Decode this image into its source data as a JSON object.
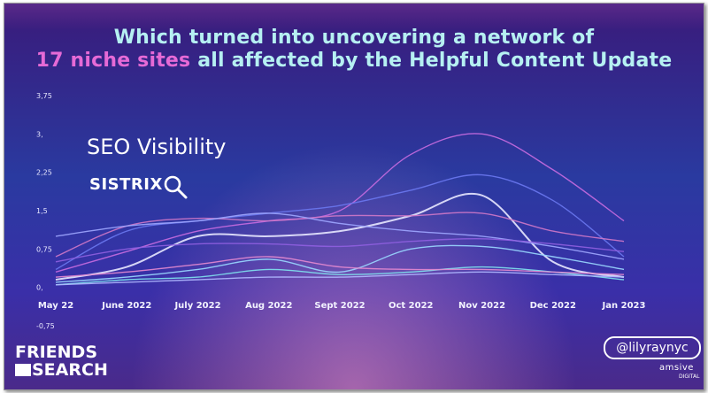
{
  "title": {
    "line1": "Which turned into uncovering a network of",
    "line2_highlight": "17 niche sites",
    "line2_rest": " all affected by the Helpful Content Update"
  },
  "overlay": {
    "label": "SEO Visibility",
    "brand": "SISTRIX",
    "brand_icon": "magnifier-icon"
  },
  "branding": {
    "event_line1": "FRIENDS",
    "event_line2": "SEARCH",
    "handle": "@lilyraynyc",
    "company": "amsive",
    "company_sub": "DIGITAL"
  },
  "colors": {
    "title": "#b6f0f2",
    "highlight": "#e66ad6"
  },
  "chart_data": {
    "type": "line",
    "title": "",
    "xlabel": "",
    "ylabel": "",
    "ylim": [
      -0.75,
      3.75
    ],
    "y_ticks": [
      "3,75",
      "3,",
      "2,25",
      "1,5",
      "0,75",
      "0,",
      "-0,75"
    ],
    "y_tick_values": [
      3.75,
      3,
      2.25,
      1.5,
      0.75,
      0,
      -0.75
    ],
    "x_ticks": [
      "May 22",
      "June 2022",
      "July 2022",
      "Aug 2022",
      "Sept 2022",
      "Oct 2022",
      "Nov 2022",
      "Dec 2022",
      "Jan 2023"
    ],
    "x": [
      0,
      1,
      2,
      3,
      4,
      5,
      6,
      7,
      8
    ],
    "grid": false,
    "series": [
      {
        "color": "#c86be0",
        "values": [
          0.3,
          0.7,
          1.1,
          1.3,
          1.5,
          2.6,
          3.0,
          2.3,
          1.3
        ]
      },
      {
        "color": "#6a78f0",
        "values": [
          0.35,
          1.1,
          1.3,
          1.45,
          1.6,
          1.9,
          2.2,
          1.7,
          0.6
        ]
      },
      {
        "color": "#e8e8ff",
        "values": [
          0.15,
          0.4,
          1.0,
          1.0,
          1.1,
          1.4,
          1.8,
          0.5,
          0.2
        ]
      },
      {
        "color": "#d078c8",
        "values": [
          0.6,
          1.2,
          1.35,
          1.3,
          1.4,
          1.4,
          1.45,
          1.1,
          0.9
        ]
      },
      {
        "color": "#9fa6ff",
        "values": [
          1.0,
          1.2,
          1.3,
          1.45,
          1.25,
          1.1,
          1.0,
          0.8,
          0.55
        ]
      },
      {
        "color": "#8f5fe0",
        "values": [
          0.5,
          0.75,
          0.85,
          0.85,
          0.8,
          0.9,
          0.95,
          0.85,
          0.7
        ]
      },
      {
        "color": "#9ad8ff",
        "values": [
          0.1,
          0.2,
          0.35,
          0.55,
          0.3,
          0.75,
          0.8,
          0.6,
          0.35
        ]
      },
      {
        "color": "#7fe3ee",
        "values": [
          0.05,
          0.15,
          0.2,
          0.35,
          0.25,
          0.3,
          0.4,
          0.3,
          0.15
        ]
      },
      {
        "color": "#e48ad0",
        "values": [
          0.2,
          0.3,
          0.45,
          0.6,
          0.4,
          0.35,
          0.35,
          0.3,
          0.25
        ]
      },
      {
        "color": "#b0b8ff",
        "values": [
          0.05,
          0.1,
          0.15,
          0.2,
          0.2,
          0.25,
          0.3,
          0.25,
          0.2
        ]
      }
    ]
  }
}
